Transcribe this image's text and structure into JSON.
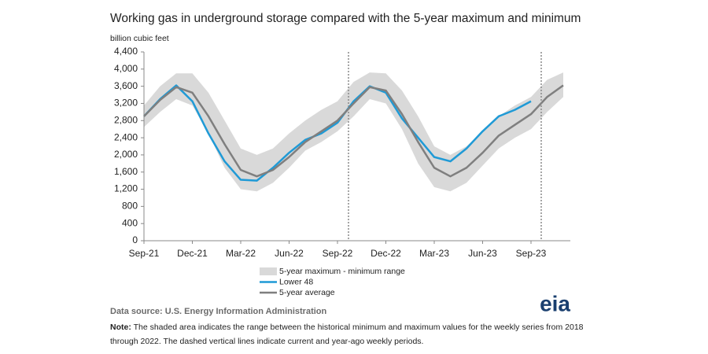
{
  "chart_data": {
    "type": "line",
    "title": "Working gas in underground  storage compared with the 5-year maximum and minimum",
    "y_label": "billion cubic feet",
    "categories": [
      "Sep-21",
      null,
      null,
      "Dec-21",
      null,
      null,
      "Mar-22",
      null,
      null,
      "Jun-22",
      null,
      null,
      "Sep-22",
      null,
      null,
      "Dec-22",
      null,
      null,
      "Mar-23",
      null,
      null,
      "Jun-23",
      null,
      null,
      "Sep-23",
      null,
      null
    ],
    "ylim": [
      0,
      4400
    ],
    "yticks": [
      0,
      400,
      800,
      {
        "value": 1200,
        "label": "1,200"
      },
      {
        "value": 1600,
        "label": "1,600"
      },
      {
        "value": 2000,
        "label": "2,000"
      },
      {
        "value": 2400,
        "label": "2,400"
      },
      {
        "value": 2800,
        "label": "2,800"
      },
      {
        "value": 3200,
        "label": "3,200"
      },
      {
        "value": 3600,
        "label": "3,600"
      },
      {
        "value": 4000,
        "label": "4,000"
      },
      {
        "value": 4400,
        "label": "4,400"
      }
    ],
    "grid": false,
    "series": [
      {
        "name": "5-year maximum - minimum range",
        "color": "#d9d9d9",
        "values": [
          3150,
          3600,
          3900,
          3900,
          3450,
          2800,
          2150,
          2000,
          2150,
          2500,
          2800,
          3050,
          3250,
          3700,
          3920,
          3900,
          3500,
          2900,
          2200,
          2000,
          2200,
          2550,
          2900,
          3150,
          3350,
          3750,
          3920
        ],
        "lower": [
          2650,
          3000,
          3300,
          3150,
          2500,
          1700,
          1200,
          1150,
          1350,
          1700,
          2100,
          2300,
          2550,
          2900,
          3300,
          3200,
          2600,
          1800,
          1250,
          1150,
          1350,
          1750,
          2150,
          2400,
          2600,
          3000,
          3350
        ]
      },
      {
        "name": "Lower 48",
        "color": "#1f9ad6",
        "values": [
          2900,
          3300,
          3620,
          3250,
          2500,
          1850,
          1420,
          1400,
          1700,
          2050,
          2350,
          2500,
          2750,
          3250,
          3600,
          3450,
          2850,
          2400,
          1950,
          1850,
          2150,
          2550,
          2900,
          3050,
          3250,
          null,
          null
        ]
      },
      {
        "name": "5-year average",
        "color": "#7f7f7f",
        "values": [
          2900,
          3280,
          3580,
          3450,
          2900,
          2250,
          1650,
          1500,
          1650,
          1950,
          2300,
          2550,
          2800,
          3200,
          3580,
          3500,
          2950,
          2300,
          1700,
          1500,
          1700,
          2050,
          2450,
          2700,
          2950,
          3350,
          3620
        ]
      }
    ],
    "source": "Data source: U.S. Energy Information Administration",
    "logo": "eia",
    "note_label": "Note:",
    "note_line1": " The shaded area indicates the range between the historical minimum and maximum values for the weekly series from 2018",
    "note_line2": "through 2022. The dashed vertical lines indicate current and year-ago weekly periods."
  }
}
